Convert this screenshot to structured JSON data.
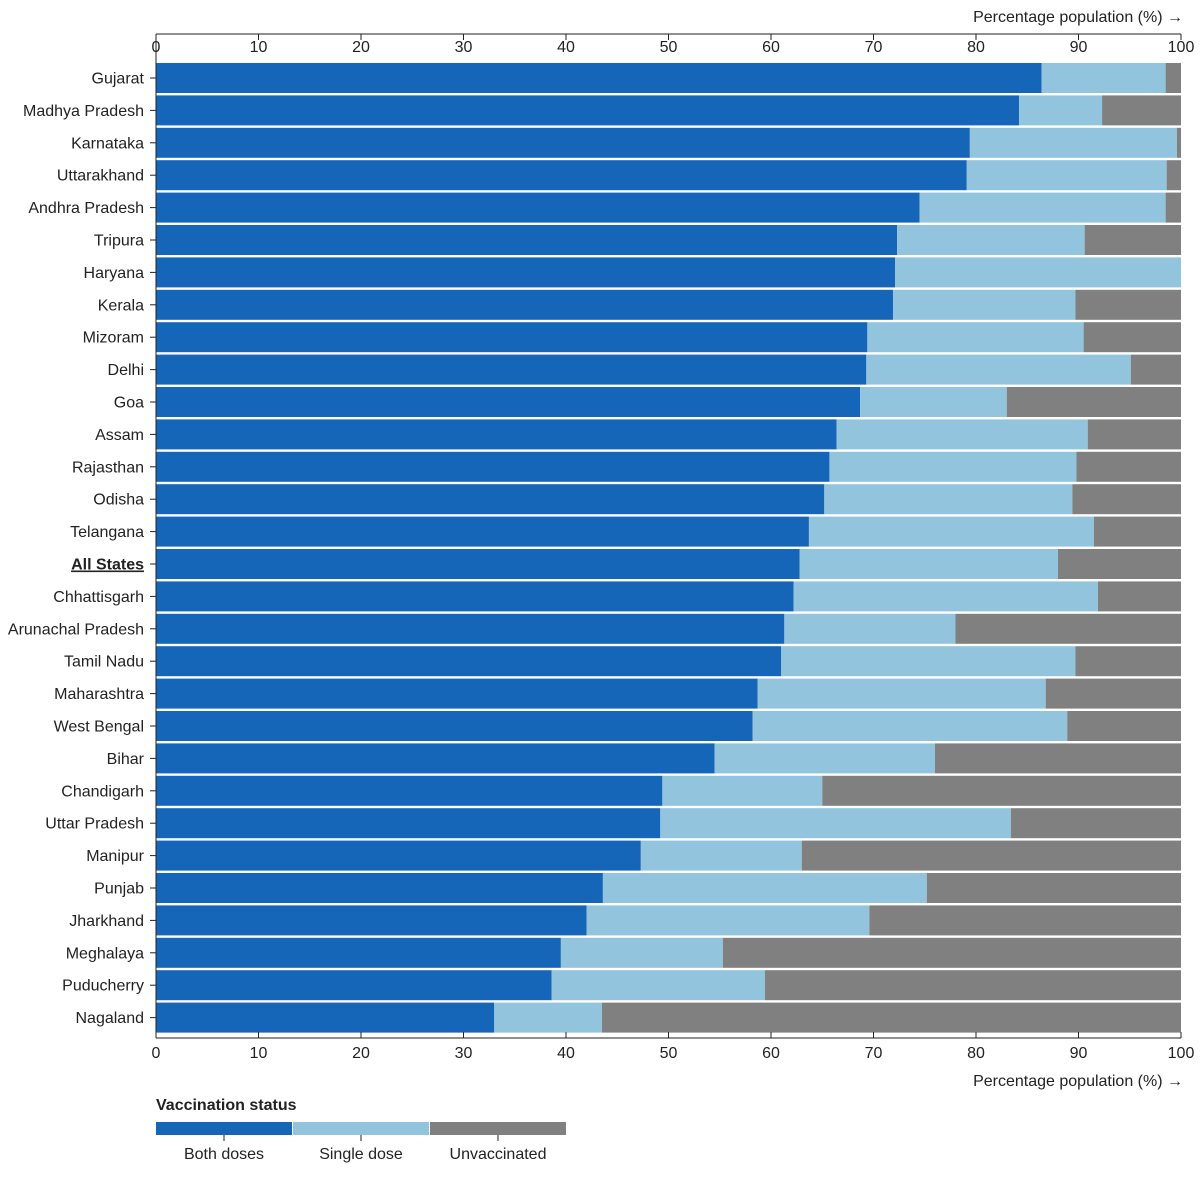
{
  "chart_data": {
    "type": "bar",
    "orientation": "horizontal",
    "stacked": true,
    "axis_title": "Percentage population (%) →",
    "xlim": [
      0,
      100
    ],
    "ticks": [
      0,
      10,
      20,
      30,
      40,
      50,
      60,
      70,
      80,
      90,
      100
    ],
    "categories": [
      "Gujarat",
      "Madhya Pradesh",
      "Karnataka",
      "Uttarakhand",
      "Andhra Pradesh",
      "Tripura",
      "Haryana",
      "Kerala",
      "Mizoram",
      "Delhi",
      "Goa",
      "Assam",
      "Rajasthan",
      "Odisha",
      "Telangana",
      "All States",
      "Chhattisgarh",
      "Arunachal Pradesh",
      "Tamil Nadu",
      "Maharashtra",
      "West Bengal",
      "Bihar",
      "Chandigarh",
      "Uttar Pradesh",
      "Manipur",
      "Punjab",
      "Jharkhand",
      "Meghalaya",
      "Puducherry",
      "Nagaland"
    ],
    "highlight_category": "All States",
    "series": [
      {
        "name": "Both doses",
        "color": "#1565b8",
        "values": [
          86.4,
          84.2,
          79.4,
          79.1,
          74.5,
          72.3,
          72.1,
          71.9,
          69.4,
          69.3,
          68.7,
          66.4,
          65.7,
          65.2,
          63.7,
          62.8,
          62.2,
          61.3,
          61.0,
          58.7,
          58.2,
          54.5,
          49.4,
          49.2,
          47.3,
          43.6,
          42.0,
          39.5,
          38.6,
          33.0
        ]
      },
      {
        "name": "Single dose",
        "color": "#93c4de",
        "values": [
          12.1,
          8.1,
          20.2,
          19.5,
          24.0,
          18.3,
          27.9,
          17.8,
          21.1,
          25.8,
          14.3,
          24.5,
          24.1,
          24.2,
          27.8,
          25.2,
          29.7,
          16.7,
          28.7,
          28.1,
          30.7,
          21.5,
          15.6,
          34.2,
          15.7,
          31.6,
          27.6,
          15.8,
          20.8,
          10.5
        ]
      },
      {
        "name": "Unvaccinated",
        "color": "#808080",
        "values": [
          1.5,
          7.7,
          0.4,
          1.4,
          1.5,
          9.4,
          0.0,
          10.3,
          9.5,
          4.9,
          17.0,
          9.1,
          10.2,
          10.6,
          8.5,
          12.0,
          8.1,
          22.0,
          10.3,
          13.2,
          11.1,
          24.0,
          35.0,
          16.6,
          37.0,
          24.8,
          30.4,
          44.7,
          40.6,
          56.5
        ]
      }
    ],
    "legend": {
      "title": "Vaccination status",
      "items": [
        "Both doses",
        "Single dose",
        "Unvaccinated"
      ],
      "placement": "bottom-left"
    }
  }
}
